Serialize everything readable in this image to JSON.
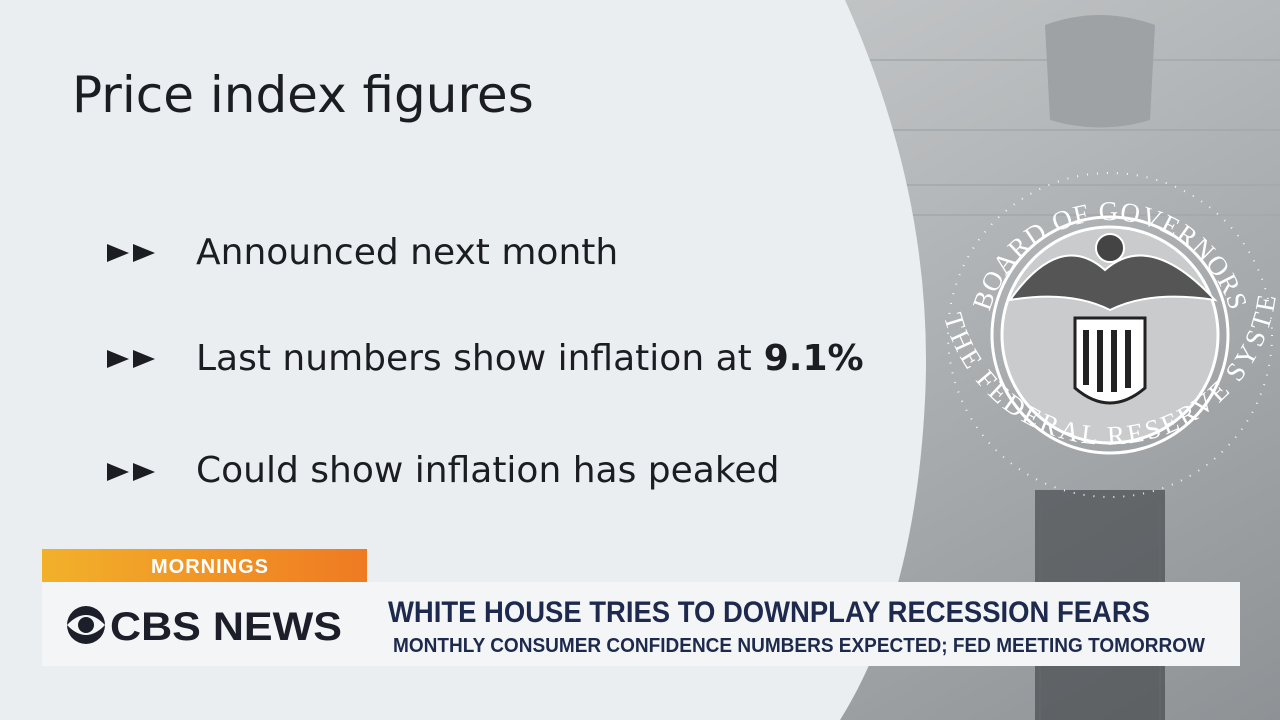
{
  "slide": {
    "title": "Price index figures",
    "bullets": [
      {
        "text": "Announced next month"
      },
      {
        "text": "Last numbers show inflation at",
        "highlight": "9.1%"
      },
      {
        "text": "Could show inflation has peaked"
      }
    ],
    "seal": {
      "top": "BOARD OF GOVERNORS",
      "bottom": "OF THE FEDERAL RESERVE SYSTEM"
    }
  },
  "lower_third": {
    "show": "MORNINGS",
    "network": "CBS NEWS",
    "headline": "WHITE HOUSE TRIES TO DOWNPLAY RECESSION FEARS",
    "subhead": "MONTHLY CONSUMER CONFIDENCE NUMBERS EXPECTED; FED MEETING TOMORROW"
  }
}
